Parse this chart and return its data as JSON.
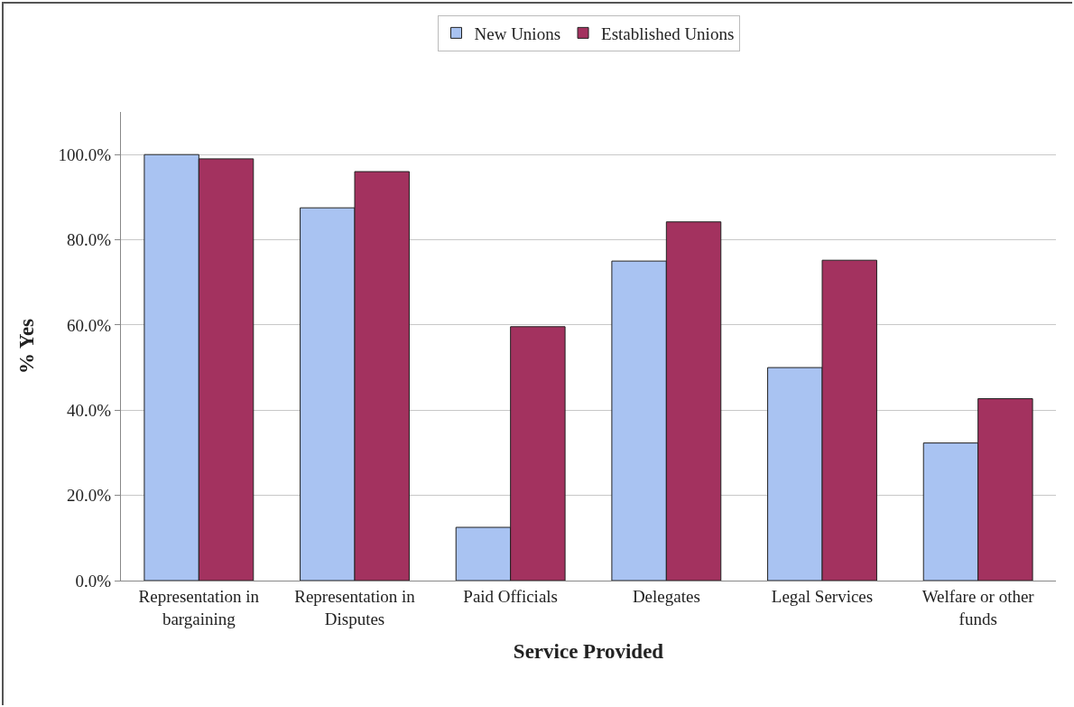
{
  "chart_data": {
    "type": "bar",
    "xlabel": "Service Provided",
    "ylabel": "% Yes",
    "categories": [
      "Representation in bargaining",
      "Representation in Disputes",
      "Paid Officials",
      "Delegates",
      "Legal Services",
      "Welfare or other funds"
    ],
    "series": [
      {
        "name": "New Unions",
        "color": "#a9c3f2",
        "values": [
          100,
          87.5,
          12.5,
          75,
          50,
          32.3
        ]
      },
      {
        "name": "Established Unions",
        "color": "#a3325f",
        "values": [
          99,
          96,
          59.6,
          84.2,
          75.2,
          42.7
        ]
      }
    ],
    "ylim": [
      0,
      110
    ],
    "yticks": [
      {
        "value": 0,
        "label": "0.0%"
      },
      {
        "value": 20,
        "label": "20.0%"
      },
      {
        "value": 40,
        "label": "40.0%"
      },
      {
        "value": 60,
        "label": "60.0%"
      },
      {
        "value": 80,
        "label": "80.0%"
      },
      {
        "value": 100,
        "label": "100.0%"
      }
    ],
    "grid": "y",
    "legend": "top"
  }
}
